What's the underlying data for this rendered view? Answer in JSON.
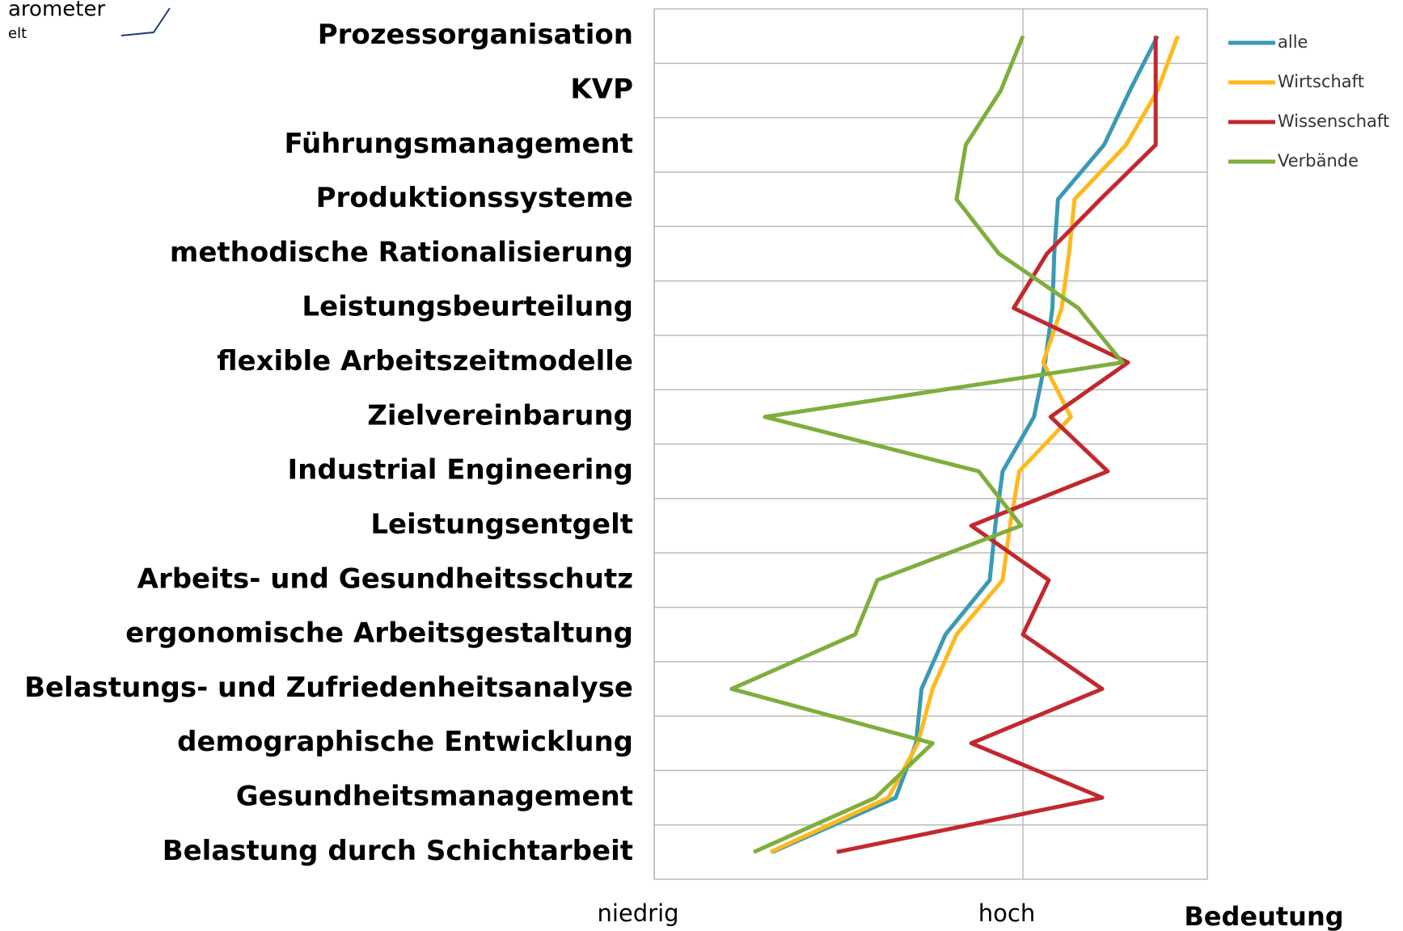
{
  "chart_data": {
    "type": "line",
    "logo": "arometer",
    "logo_sub": "elt",
    "categories": [
      "Prozessorganisation",
      "KVP",
      "Führungsmanagement",
      "Produktionssysteme",
      "methodische Rationalisierung",
      "Leistungsbeurteilung",
      "flexible Arbeitszeitmodelle",
      "Zielvereinbarung",
      "Industrial Engineering",
      "Leistungsentgelt",
      "Arbeits- und Gesundheitsschutz",
      "ergonomische Arbeitsgestaltung",
      "Belastungs- und Zufriedenheitsanalyse",
      "demographische  Entwicklung",
      "Gesundheitsmanagement",
      "Belastung durch Schichtarbeit"
    ],
    "series": [
      {
        "name": "alle",
        "color": "#3a9ab5",
        "values": [
          2.73,
          2.58,
          2.44,
          2.19,
          2.17,
          2.16,
          2.12,
          2.06,
          1.89,
          1.85,
          1.82,
          1.58,
          1.45,
          1.42,
          1.31,
          0.64
        ]
      },
      {
        "name": "Wirtschaft",
        "color": "#ffb81c",
        "values": [
          2.84,
          2.73,
          2.56,
          2.28,
          2.25,
          2.21,
          2.11,
          2.26,
          1.98,
          1.93,
          1.89,
          1.64,
          1.51,
          1.43,
          1.27,
          0.63
        ]
      },
      {
        "name": "Wissenschaft",
        "color": "#c2282e",
        "values": [
          2.72,
          2.72,
          2.72,
          2.42,
          2.13,
          1.95,
          2.57,
          2.15,
          2.46,
          1.72,
          2.14,
          2.0,
          2.43,
          1.72,
          2.43,
          0.99
        ]
      },
      {
        "name": "Verbände",
        "color": "#7fae3c",
        "values": [
          2.0,
          1.88,
          1.69,
          1.64,
          1.87,
          2.3,
          2.54,
          0.6,
          1.76,
          1.99,
          1.21,
          1.09,
          0.42,
          1.51,
          1.2,
          0.54
        ]
      }
    ],
    "xlim": [
      0,
      3
    ],
    "xticks": [
      {
        "value": 0,
        "label": "niedrig"
      },
      {
        "value": 2,
        "label": "hoch"
      }
    ],
    "x_label": "Bedeutung",
    "grid": true,
    "legend": "right"
  }
}
